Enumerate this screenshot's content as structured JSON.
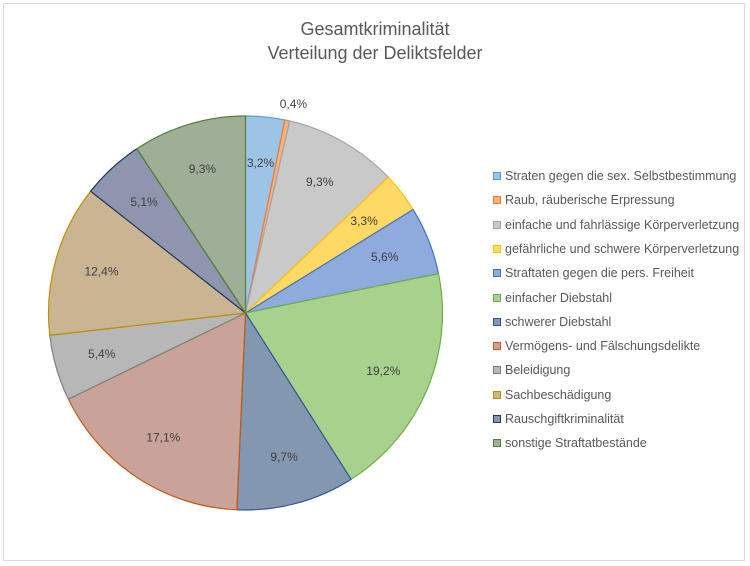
{
  "chart_data": {
    "type": "pie",
    "title_line1": "Gesamtkriminalität",
    "title_line2": "Verteilung  der Deliktsfelder",
    "slices": [
      {
        "label": "Straten gegen die sex. Selbstbestimmung",
        "value": 3.2,
        "display": "3,2%",
        "fill": "#9dc3e6",
        "stroke": "#5b9bd5"
      },
      {
        "label": "Raub, räuberische Erpressung",
        "value": 0.4,
        "display": "0,4%",
        "fill": "#f4b183",
        "stroke": "#ed7d31"
      },
      {
        "label": "einfache und fahrlässige Körperverletzung",
        "value": 9.3,
        "display": "9,3%",
        "fill": "#c9c9c9",
        "stroke": "#a5a5a5"
      },
      {
        "label": "gefährliche und schwere Körperverletzung",
        "value": 3.3,
        "display": "3,3%",
        "fill": "#ffd966",
        "stroke": "#ffc000"
      },
      {
        "label": "Straftaten gegen die pers. Freiheit",
        "value": 5.6,
        "display": "5,6%",
        "fill": "#8faadc",
        "stroke": "#4472c4"
      },
      {
        "label": "einfacher Diebstahl",
        "value": 19.2,
        "display": "19,2%",
        "fill": "#a9d18e",
        "stroke": "#70ad47"
      },
      {
        "label": "schwerer Diebstahl",
        "value": 9.7,
        "display": "9,7%",
        "fill": "#8497b0",
        "stroke": "#2f5597"
      },
      {
        "label": "Vermögens- und Fälschungsdelikte",
        "value": 17.1,
        "display": "17,1%",
        "fill": "#c9a29a",
        "stroke": "#c55a11"
      },
      {
        "label": "Beleidigung",
        "value": 5.4,
        "display": "5,4%",
        "fill": "#b7b7b7",
        "stroke": "#7f7f7f"
      },
      {
        "label": "Sachbeschädigung",
        "value": 12.4,
        "display": "12,4%",
        "fill": "#c9b592",
        "stroke": "#bf9000"
      },
      {
        "label": "Rauschgiftkriminalität",
        "value": 5.1,
        "display": "5,1%",
        "fill": "#8e95ad",
        "stroke": "#203864"
      },
      {
        "label": "sonstige Straftatbestände",
        "value": 9.3,
        "display": "9,3%",
        "fill": "#9fae97",
        "stroke": "#548235"
      }
    ],
    "legend_position": "right"
  }
}
